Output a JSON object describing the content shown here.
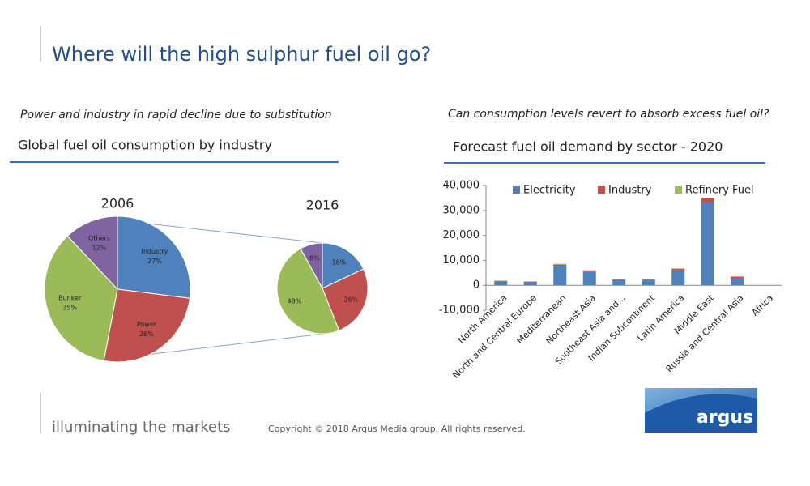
{
  "page": {
    "title": "Where will the high sulphur fuel oil go?",
    "tagline": "illuminating the markets",
    "copyright": "Copyright © 2018 Argus Media group. All rights reserved.",
    "logo": "argus"
  },
  "chart_data": [
    {
      "type": "pie",
      "subtitle": "Power and industry in rapid decline due to substitution",
      "title": "Global fuel oil consumption by industry",
      "categories": [
        "Industry",
        "Power",
        "Bunker",
        "Others"
      ],
      "colors": [
        "#4f81bd",
        "#c0504d",
        "#9bbb59",
        "#8064a2"
      ],
      "series": [
        {
          "name": "2006",
          "values": [
            27,
            26,
            35,
            12
          ],
          "value_labels": [
            "27%",
            "26%",
            "35%",
            "12%"
          ]
        },
        {
          "name": "2016",
          "values": [
            18,
            26,
            48,
            8
          ],
          "value_labels": [
            "18%",
            "26%",
            "48%",
            "8%"
          ]
        }
      ]
    },
    {
      "type": "bar",
      "subtitle": "Can consumption levels revert to absorb excess fuel oil?",
      "title": "Forecast fuel oil demand by sector - 2020",
      "stacked": true,
      "categories": [
        "North America",
        "North and Central Europe",
        "Mediterranean",
        "Northeast Asia",
        "Southeast Asia and...",
        "Indian Subcontinent",
        "Latin America",
        "Middle East",
        "Russia and Central Asia",
        "Africa"
      ],
      "series": [
        {
          "name": "Electricity",
          "color": "#4f81bd",
          "values": [
            1500,
            1200,
            7800,
            5500,
            2300,
            2000,
            6200,
            33500,
            3000,
            0
          ]
        },
        {
          "name": "Industry",
          "color": "#c0504d",
          "values": [
            300,
            300,
            500,
            500,
            100,
            300,
            500,
            1500,
            500,
            0
          ]
        },
        {
          "name": "Refinery Fuel",
          "color": "#9bbb59",
          "values": [
            0,
            0,
            300,
            0,
            0,
            0,
            0,
            0,
            0,
            0
          ]
        }
      ],
      "ylim": [
        -10000,
        40000
      ],
      "yticks": [
        {
          "value": -10000,
          "label": "-10,000"
        },
        0,
        {
          "value": 10000,
          "label": "10,000"
        },
        {
          "value": 20000,
          "label": "20,000"
        },
        {
          "value": 30000,
          "label": "30,000"
        },
        {
          "value": 40000,
          "label": "40,000"
        }
      ],
      "legend": "top"
    }
  ]
}
